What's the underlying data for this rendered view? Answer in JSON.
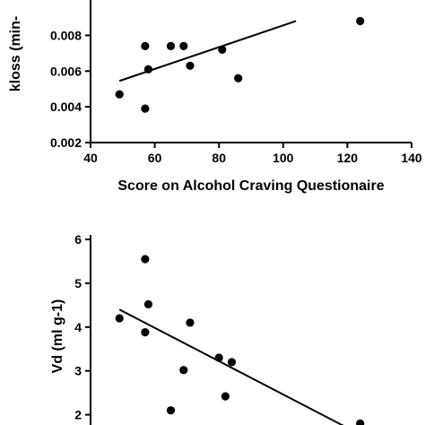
{
  "chart_data": [
    {
      "type": "scatter",
      "title": "",
      "xlabel": "Score on Alcohol Craving Questionaire",
      "ylabel": "kloss (min-",
      "xlim": [
        40,
        140
      ],
      "ylim": [
        0.002,
        0.009
      ],
      "x_ticks": [
        40,
        60,
        80,
        100,
        120,
        140
      ],
      "x_tick_labels": [
        "40",
        "60",
        "80",
        "100",
        "120",
        "140"
      ],
      "y_ticks": [
        0.002,
        0.004,
        0.006,
        0.008
      ],
      "y_tick_labels": [
        "0.002",
        "0.004",
        "0.006",
        "0.008"
      ],
      "grid": false,
      "points": [
        {
          "x": 49,
          "y": 0.0047
        },
        {
          "x": 57,
          "y": 0.0074
        },
        {
          "x": 57,
          "y": 0.0039
        },
        {
          "x": 58,
          "y": 0.0061
        },
        {
          "x": 65,
          "y": 0.0074
        },
        {
          "x": 69,
          "y": 0.0074
        },
        {
          "x": 71,
          "y": 0.0063
        },
        {
          "x": 81,
          "y": 0.0072
        },
        {
          "x": 86,
          "y": 0.0056
        },
        {
          "x": 124,
          "y": 0.0088
        }
      ],
      "fit_line": {
        "x": [
          49,
          104
        ],
        "y": [
          0.00545,
          0.0088
        ]
      }
    },
    {
      "type": "scatter",
      "title": "",
      "xlabel": "",
      "ylabel": "Vd (ml g-1)",
      "xlim": [
        40,
        140
      ],
      "ylim": [
        1.5,
        6
      ],
      "x_ticks": [],
      "x_tick_labels": [],
      "y_ticks": [
        2,
        3,
        4,
        5,
        6
      ],
      "y_tick_labels": [
        "2",
        "3",
        "4",
        "5",
        "6"
      ],
      "grid": false,
      "points": [
        {
          "x": 49,
          "y": 4.2
        },
        {
          "x": 57,
          "y": 5.55
        },
        {
          "x": 57,
          "y": 3.88
        },
        {
          "x": 58,
          "y": 4.52
        },
        {
          "x": 65,
          "y": 2.1
        },
        {
          "x": 69,
          "y": 3.02
        },
        {
          "x": 71,
          "y": 4.1
        },
        {
          "x": 80,
          "y": 3.3
        },
        {
          "x": 82,
          "y": 2.42
        },
        {
          "x": 84,
          "y": 3.2
        },
        {
          "x": 124,
          "y": 1.8
        }
      ],
      "fit_line": {
        "x": [
          49,
          124
        ],
        "y": [
          4.4,
          1.55
        ]
      }
    }
  ]
}
